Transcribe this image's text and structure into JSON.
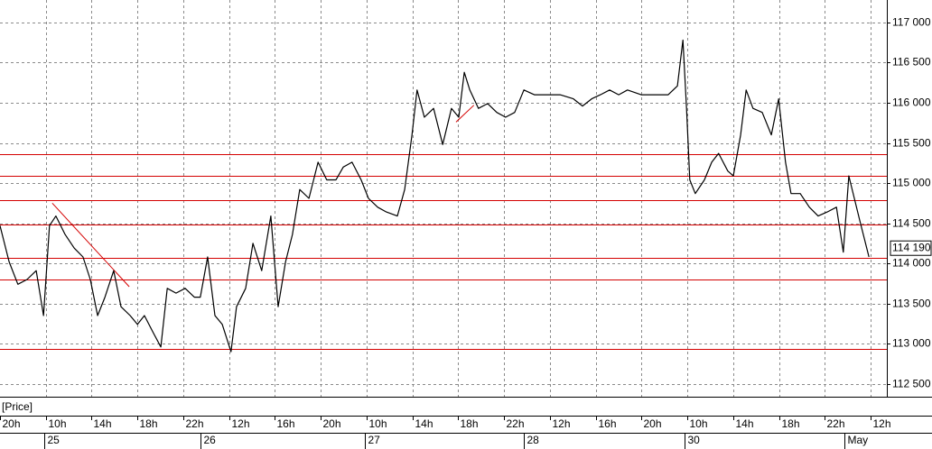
{
  "chart_data": {
    "type": "line",
    "legend_label": "[Price]",
    "grid": true,
    "xlim": [
      -1,
      18.35
    ],
    "ylim": [
      112340,
      117280
    ],
    "xticks": [
      {
        "value": -1,
        "label": "20h"
      },
      {
        "value": 0,
        "label": "10h"
      },
      {
        "value": 1,
        "label": "14h"
      },
      {
        "value": 2,
        "label": "18h"
      },
      {
        "value": 3,
        "label": "22h"
      },
      {
        "value": 4,
        "label": "12h"
      },
      {
        "value": 5,
        "label": "16h"
      },
      {
        "value": 6,
        "label": "20h"
      },
      {
        "value": 7,
        "label": "10h"
      },
      {
        "value": 8,
        "label": "14h"
      },
      {
        "value": 9,
        "label": "18h"
      },
      {
        "value": 10,
        "label": "22h"
      },
      {
        "value": 11,
        "label": "12h"
      },
      {
        "value": 12,
        "label": "16h"
      },
      {
        "value": 13,
        "label": "20h"
      },
      {
        "value": 14,
        "label": "10h"
      },
      {
        "value": 15,
        "label": "14h"
      },
      {
        "value": 16,
        "label": "18h"
      },
      {
        "value": 17,
        "label": "22h"
      },
      {
        "value": 18,
        "label": "12h"
      }
    ],
    "date_ticks": [
      {
        "value": -0.04,
        "label": "25"
      },
      {
        "value": 3.37,
        "label": "26"
      },
      {
        "value": 6.96,
        "label": "27"
      },
      {
        "value": 10.43,
        "label": "28"
      },
      {
        "value": 13.94,
        "label": "30"
      },
      {
        "value": 17.42,
        "label": "May"
      }
    ],
    "yticks": [
      {
        "value": 112500,
        "label": "112 500"
      },
      {
        "value": 113000,
        "label": "113 000"
      },
      {
        "value": 113500,
        "label": "113 500"
      },
      {
        "value": 114000,
        "label": "114 000"
      },
      {
        "value": 114500,
        "label": "114 500"
      },
      {
        "value": 115000,
        "label": "115 000"
      },
      {
        "value": 115500,
        "label": "115 500"
      },
      {
        "value": 116000,
        "label": "116 000"
      },
      {
        "value": 116500,
        "label": "116 500"
      },
      {
        "value": 117000,
        "label": "117 000"
      }
    ],
    "last_price": {
      "value": 114190,
      "label": "114 190"
    },
    "levels": [
      115360,
      115090,
      114790,
      114490,
      114070,
      113800,
      112940
    ],
    "level_color": "#d40000",
    "trendlines": [
      {
        "x": [
          0.14,
          1.82
        ],
        "y": [
          114750,
          113710
        ]
      },
      {
        "x": [
          8.95,
          9.34
        ],
        "y": [
          115760,
          115970
        ]
      }
    ],
    "series": [
      {
        "name": "Price",
        "color": "#000000",
        "x": [
          -1.0,
          -0.8,
          -0.61,
          -0.41,
          -0.21,
          -0.05,
          0.08,
          0.22,
          0.42,
          0.62,
          0.81,
          0.97,
          1.13,
          1.29,
          1.48,
          1.64,
          1.84,
          2.0,
          2.15,
          2.35,
          2.51,
          2.65,
          2.84,
          3.04,
          3.24,
          3.37,
          3.53,
          3.69,
          3.85,
          4.04,
          4.16,
          4.36,
          4.52,
          4.71,
          4.91,
          5.07,
          5.23,
          5.38,
          5.54,
          5.74,
          5.94,
          6.13,
          6.33,
          6.49,
          6.68,
          6.88,
          7.04,
          7.24,
          7.43,
          7.67,
          7.83,
          7.99,
          8.1,
          8.26,
          8.46,
          8.66,
          8.85,
          9.01,
          9.13,
          9.25,
          9.44,
          9.64,
          9.84,
          10.03,
          10.23,
          10.43,
          10.66,
          10.92,
          11.22,
          11.51,
          11.71,
          11.91,
          12.1,
          12.3,
          12.5,
          12.69,
          12.99,
          13.29,
          13.58,
          13.78,
          13.9,
          13.98,
          14.05,
          14.17,
          14.37,
          14.53,
          14.68,
          14.88,
          15.0,
          15.16,
          15.28,
          15.43,
          15.63,
          15.83,
          15.99,
          16.14,
          16.26,
          16.46,
          16.66,
          16.85,
          17.05,
          17.25,
          17.4,
          17.52,
          17.64,
          17.76,
          17.96
        ],
        "values": [
          114470,
          114020,
          113740,
          113800,
          113910,
          113350,
          114470,
          114590,
          114360,
          114190,
          114080,
          113800,
          113350,
          113580,
          113910,
          113460,
          113350,
          113240,
          113350,
          113130,
          112960,
          113690,
          113630,
          113690,
          113580,
          113580,
          114080,
          113350,
          113240,
          112900,
          113460,
          113690,
          114250,
          113910,
          114590,
          113460,
          114020,
          114360,
          114920,
          114810,
          115260,
          115040,
          115040,
          115200,
          115260,
          115040,
          114810,
          114700,
          114640,
          114590,
          114920,
          115600,
          116160,
          115820,
          115930,
          115480,
          115930,
          115820,
          116380,
          116160,
          115930,
          115990,
          115880,
          115820,
          115880,
          116160,
          116100,
          116100,
          116100,
          116050,
          115960,
          116050,
          116100,
          116160,
          116100,
          116160,
          116100,
          116100,
          116100,
          116210,
          116780,
          115930,
          115040,
          114870,
          115040,
          115260,
          115370,
          115150,
          115090,
          115600,
          116160,
          115930,
          115880,
          115600,
          116050,
          115260,
          114870,
          114870,
          114700,
          114590,
          114640,
          114700,
          114140,
          115090,
          114810,
          114530,
          114080
        ]
      }
    ]
  }
}
